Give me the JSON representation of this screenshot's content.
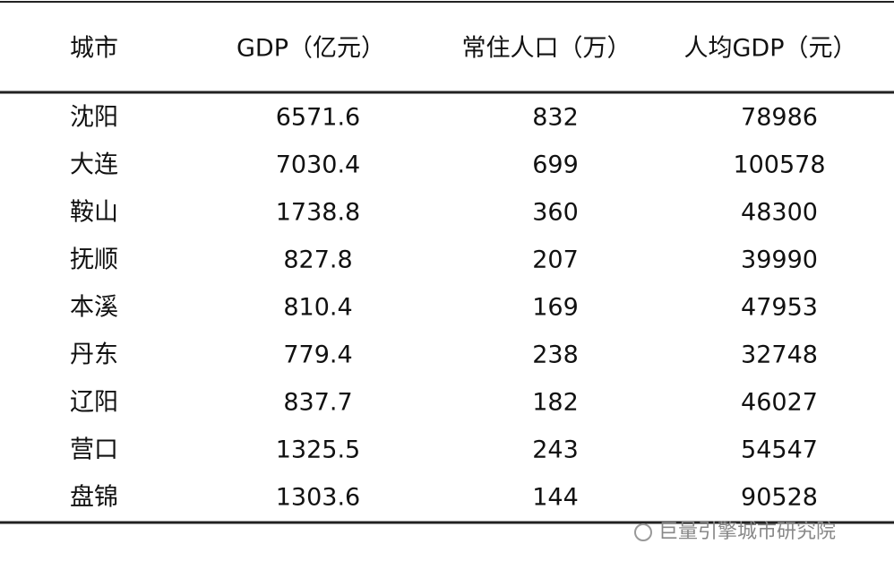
{
  "table": {
    "header": [
      "城市",
      "GDP（亿元）",
      "常住人口（万）",
      "人均GDP（元）"
    ],
    "rows": [
      [
        "沈阳",
        "6571.6",
        "832",
        "78986"
      ],
      [
        "大连",
        "7030.4",
        "699",
        "100578"
      ],
      [
        "鞍山",
        "1738.8",
        "360",
        "48300"
      ],
      [
        "抚顺",
        "827.8",
        "207",
        "39990"
      ],
      [
        "本溪",
        "810.4",
        "169",
        "47953"
      ],
      [
        "丹东",
        "779.4",
        "238",
        "32748"
      ],
      [
        "辽阳",
        "837.7",
        "182",
        "46027"
      ],
      [
        "营口",
        "1325.5",
        "243",
        "54547"
      ],
      [
        "盘锦",
        "1303.6",
        "144",
        "90528"
      ]
    ]
  },
  "watermark": "巨量引擎城市研究院"
}
